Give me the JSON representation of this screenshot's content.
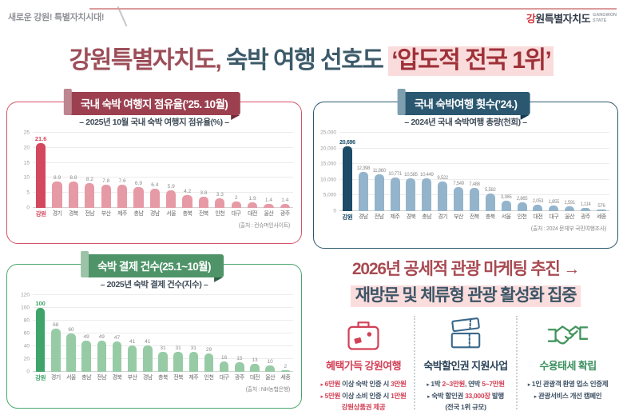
{
  "header": {
    "tagline": "새로운 강원! 특별자치시대!",
    "logo": {
      "kr_first": "강",
      "kr_rest": "원특별자치도",
      "en_line1": "GANGWON",
      "en_line2": "STATE"
    }
  },
  "main_title": {
    "part1": "강원특별자치도,",
    "part2": " 숙박 여행 선호도 ",
    "highlight": "‘압도적 전국 1위’"
  },
  "chart_data": [
    {
      "type": "bar",
      "title": "국내 숙박 여행지 점유율(’25. 10월)",
      "subtitle": "– 2025년 10월 국내 숙박 여행지 점유율(%) –",
      "source": "(출처 : 컨슈머인사이트)",
      "categories": [
        "강원",
        "경기",
        "경북",
        "전남",
        "부산",
        "제주",
        "충남",
        "경남",
        "서울",
        "충북",
        "전북",
        "인천",
        "대구",
        "대전",
        "울산",
        "광주"
      ],
      "values": [
        21.6,
        8.9,
        8.8,
        8.2,
        7.8,
        7.6,
        6.9,
        6.4,
        5.9,
        4.2,
        3.8,
        3.3,
        2,
        1.9,
        1.4,
        1.4
      ],
      "value_labels": [
        "21.6",
        "8.9",
        "8.8",
        "8.2",
        "7.8",
        "7.6",
        "6.9",
        "6.4",
        "5.9",
        "4.2",
        "3.8",
        "3.3",
        "2",
        "1.9",
        "1.4",
        "1.4"
      ],
      "ylim": [
        0,
        25
      ],
      "yticks": [
        0,
        5,
        10,
        15,
        20,
        25
      ],
      "ytick_labels": [
        "0",
        "5",
        "10",
        "15",
        "20",
        "25"
      ],
      "grid": true,
      "colors": {
        "border": "#d4556b",
        "ribbon": "#9c4050",
        "accent": "#bd8590",
        "fold": "#702c38",
        "bar_highlight": "#d4485e",
        "bar": "#e69aa6"
      }
    },
    {
      "type": "bar",
      "title": "국내 숙박여행 횟수(’24.)",
      "subtitle": "– 2024년 국내 숙박여행 총량(천회) –",
      "source": "(출처 : 2024 문체부 국민여행조사)",
      "categories": [
        "강원",
        "경남",
        "전남",
        "제주",
        "경북",
        "충남",
        "경기",
        "부산",
        "전북",
        "충북",
        "서울",
        "인천",
        "대전",
        "대구",
        "울산",
        "광주",
        "세종"
      ],
      "values": [
        20696,
        12398,
        11860,
        10771,
        10585,
        10449,
        9522,
        7549,
        7488,
        5582,
        3365,
        2865,
        2053,
        1855,
        1591,
        1114,
        576
      ],
      "value_labels": [
        "20,696",
        "12,398",
        "11,860",
        "10,771",
        "10,585",
        "10,449",
        "9,522",
        "7,549",
        "7,488",
        "5,582",
        "3,365",
        "2,865",
        "2,053",
        "1,855",
        "1,591",
        "1,114",
        "576"
      ],
      "ylim": [
        0,
        25000
      ],
      "yticks": [
        0,
        5000,
        10000,
        15000,
        20000,
        25000
      ],
      "ytick_labels": [
        "0",
        "5,000",
        "10,000",
        "15,000",
        "20,000",
        "25,000"
      ],
      "grid": true,
      "colors": {
        "border": "#2b5870",
        "ribbon": "#2b5870",
        "accent": "#7e9fb0",
        "fold": "#163c50",
        "bar_highlight": "#1c4c68",
        "bar": "#94b4cc"
      }
    },
    {
      "type": "bar",
      "title": "숙박 결제 건수(25.1~10월)",
      "subtitle": "– 2025년 숙박 결제 건수(지수) –",
      "source": "(출처 : NH농협은행)",
      "categories": [
        "강원",
        "경기",
        "서울",
        "충남",
        "전남",
        "경북",
        "부산",
        "경남",
        "충북",
        "전북",
        "제주",
        "인천",
        "대구",
        "광주",
        "대전",
        "울산",
        "세종"
      ],
      "values": [
        100,
        68,
        60,
        49,
        49,
        47,
        41,
        41,
        31,
        31,
        31,
        29,
        16,
        15,
        13,
        10,
        2
      ],
      "value_labels": [
        "100",
        "68",
        "60",
        "49",
        "49",
        "47",
        "41",
        "41",
        "31",
        "31",
        "31",
        "29",
        "16",
        "15",
        "13",
        "10",
        "2"
      ],
      "ylim": [
        0,
        120
      ],
      "yticks": [
        0,
        20,
        40,
        60,
        80,
        100,
        120
      ],
      "ytick_labels": [
        "0",
        "20",
        "40",
        "60",
        "80",
        "100",
        "120"
      ],
      "grid": true,
      "colors": {
        "border": "#4aa56d",
        "ribbon": "#4e9468",
        "accent": "#9cc3a8",
        "fold": "#2f5f44",
        "bar_highlight": "#3fa469",
        "bar": "#96cba6"
      }
    }
  ],
  "promo": {
    "headline1": "2026년 공세적 관광 마케팅 추진 →",
    "headline2": "재방문 및 체류형 관광 활성화 집중",
    "columns": [
      {
        "icon": "suitcase-icon",
        "icon_color": "#d24156",
        "title": "혜택가득 강원여행",
        "title_color": "#d24156",
        "lines": [
          {
            "marker": true,
            "segments": [
              {
                "t": "6만원",
                "c": "a"
              },
              {
                "t": " 이상 숙박 인증 시 ",
                "c": "b"
              },
              {
                "t": "3만원",
                "c": "a"
              }
            ]
          },
          {
            "marker": true,
            "segments": [
              {
                "t": "5만원",
                "c": "a"
              },
              {
                "t": " 이상 소비 인증 시 ",
                "c": "b"
              },
              {
                "t": "1만원",
                "c": "a"
              }
            ]
          },
          {
            "marker": false,
            "segments": [
              {
                "t": "강원상품권 제공",
                "c": "a"
              }
            ]
          }
        ]
      },
      {
        "icon": "ticket-icon",
        "icon_color": "#39688a",
        "title": "숙박할인권 지원사업",
        "title_color": "#2c4257",
        "lines": [
          {
            "marker": true,
            "segments": [
              {
                "t": "1박 ",
                "c": "b"
              },
              {
                "t": "2~3만원",
                "c": "a"
              },
              {
                "t": ", 연박 ",
                "c": "b"
              },
              {
                "t": "5~7만원",
                "c": "a"
              }
            ]
          },
          {
            "marker": true,
            "segments": [
              {
                "t": "숙박 할인권 ",
                "c": "b"
              },
              {
                "t": "33,000장",
                "c": "a"
              },
              {
                "t": " 발행",
                "c": "b"
              }
            ]
          },
          {
            "marker": false,
            "segments": [
              {
                "t": "(전국 1위 규모)",
                "c": "b"
              }
            ]
          }
        ]
      },
      {
        "icon": "handshake-icon",
        "icon_color": "#44955f",
        "title": "수용태세 확립",
        "title_color": "#3e9161",
        "lines": [
          {
            "marker": true,
            "segments": [
              {
                "t": "1인 관광객 환영 업소 인증제",
                "c": "b"
              }
            ]
          },
          {
            "marker": true,
            "segments": [
              {
                "t": "관광서비스 개선 캠페인",
                "c": "b"
              }
            ]
          }
        ]
      }
    ]
  }
}
